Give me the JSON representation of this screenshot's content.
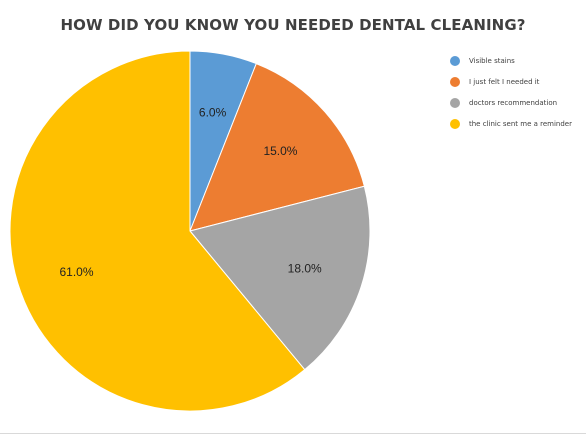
{
  "chart_data": {
    "type": "pie",
    "title": "HOW DID YOU KNOW YOU NEEDED DENTAL CLEANING?",
    "categories": [
      "Visible stains",
      "I just felt I needed it",
      "doctors recommendation",
      "the clinic sent me a reminder"
    ],
    "values": [
      6.0,
      15.0,
      18.0,
      61.0
    ],
    "labels": [
      "6.0%",
      "15.0%",
      "18.0%",
      "61.0%"
    ],
    "colors": [
      "#5b9bd5",
      "#ed7d31",
      "#a5a5a5",
      "#ffc000"
    ],
    "legend_position": "right"
  }
}
